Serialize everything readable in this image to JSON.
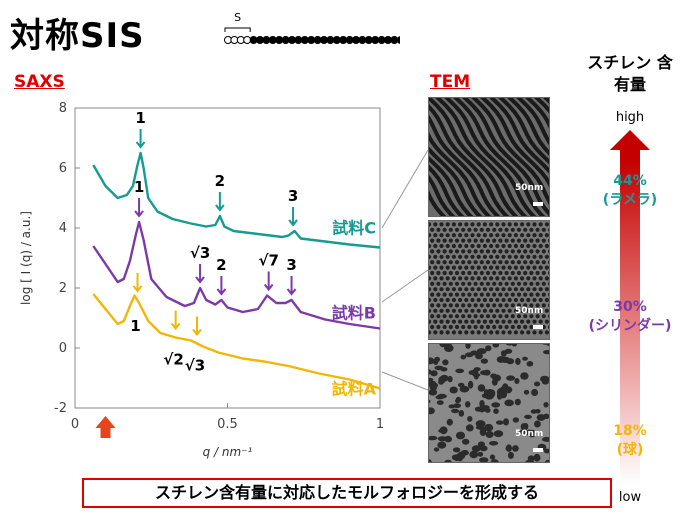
{
  "title": "対称SIS",
  "polymer_schematic": {
    "end_label_left": "S",
    "end_label_right": "S",
    "end_beads": 4,
    "mid_beads": 25
  },
  "saxs": {
    "label": "SAXS"
  },
  "tem": {
    "label": "TEM",
    "scale_bar": "50nm"
  },
  "styrene": {
    "title": "スチレン 含有量",
    "high": "high",
    "low": "low"
  },
  "footer": "スチレン含有量に対応したモルフォロジーを形成する",
  "colors": {
    "teal": "#169a94",
    "purple": "#7b3aa8",
    "gold": "#f2b705",
    "red": "#e00000"
  },
  "chart_data": {
    "type": "line",
    "xlabel": "q / nm⁻¹",
    "ylabel": "log [ I (q) / a.u.]",
    "xlim": [
      0,
      1
    ],
    "ylim": [
      -2,
      8
    ],
    "x_ticks": [
      "0",
      "0.5",
      "1"
    ],
    "y_ticks": [
      "-2",
      "0",
      "2",
      "4",
      "6",
      "8"
    ],
    "beam_marker_q": 0.1,
    "series": [
      {
        "name": "試料C",
        "color": "#169a94",
        "points": [
          [
            0.06,
            6.1
          ],
          [
            0.1,
            5.4
          ],
          [
            0.14,
            5.0
          ],
          [
            0.17,
            5.1
          ],
          [
            0.19,
            5.4
          ],
          [
            0.205,
            6.1
          ],
          [
            0.215,
            6.5
          ],
          [
            0.225,
            6.0
          ],
          [
            0.24,
            5.0
          ],
          [
            0.27,
            4.55
          ],
          [
            0.32,
            4.3
          ],
          [
            0.38,
            4.15
          ],
          [
            0.43,
            4.05
          ],
          [
            0.46,
            4.1
          ],
          [
            0.475,
            4.4
          ],
          [
            0.49,
            4.05
          ],
          [
            0.52,
            3.9
          ],
          [
            0.6,
            3.8
          ],
          [
            0.68,
            3.7
          ],
          [
            0.7,
            3.75
          ],
          [
            0.72,
            3.9
          ],
          [
            0.74,
            3.65
          ],
          [
            0.82,
            3.55
          ],
          [
            0.9,
            3.45
          ],
          [
            1.0,
            3.35
          ]
        ],
        "peaks": [
          {
            "label": "1",
            "q": 0.215,
            "y": 6.5
          },
          {
            "label": "2",
            "q": 0.475,
            "y": 4.4
          },
          {
            "label": "3",
            "q": 0.715,
            "y": 3.9
          }
        ]
      },
      {
        "name": "試料B",
        "color": "#7b3aa8",
        "points": [
          [
            0.06,
            3.4
          ],
          [
            0.1,
            2.8
          ],
          [
            0.14,
            2.2
          ],
          [
            0.16,
            2.3
          ],
          [
            0.18,
            2.9
          ],
          [
            0.2,
            3.8
          ],
          [
            0.21,
            4.2
          ],
          [
            0.225,
            3.6
          ],
          [
            0.25,
            2.3
          ],
          [
            0.3,
            1.7
          ],
          [
            0.36,
            1.4
          ],
          [
            0.39,
            1.5
          ],
          [
            0.41,
            2.0
          ],
          [
            0.43,
            1.6
          ],
          [
            0.46,
            1.45
          ],
          [
            0.48,
            1.6
          ],
          [
            0.5,
            1.35
          ],
          [
            0.55,
            1.2
          ],
          [
            0.6,
            1.3
          ],
          [
            0.63,
            1.75
          ],
          [
            0.66,
            1.5
          ],
          [
            0.69,
            1.5
          ],
          [
            0.71,
            1.6
          ],
          [
            0.74,
            1.2
          ],
          [
            0.82,
            0.95
          ],
          [
            0.9,
            0.8
          ],
          [
            1.0,
            0.65
          ]
        ],
        "peaks": [
          {
            "label": "1",
            "q": 0.21,
            "y": 4.2
          },
          {
            "label": "√3",
            "q": 0.41,
            "y": 2.0
          },
          {
            "label": "2",
            "q": 0.48,
            "y": 1.6
          },
          {
            "label": "√7",
            "q": 0.635,
            "y": 1.75
          },
          {
            "label": "3",
            "q": 0.71,
            "y": 1.6
          }
        ]
      },
      {
        "name": "試料A",
        "color": "#f2b705",
        "points": [
          [
            0.06,
            1.8
          ],
          [
            0.1,
            1.3
          ],
          [
            0.14,
            0.8
          ],
          [
            0.16,
            0.9
          ],
          [
            0.18,
            1.4
          ],
          [
            0.195,
            1.75
          ],
          [
            0.21,
            1.5
          ],
          [
            0.24,
            0.9
          ],
          [
            0.28,
            0.5
          ],
          [
            0.33,
            0.35
          ],
          [
            0.38,
            0.25
          ],
          [
            0.42,
            0.05
          ],
          [
            0.47,
            -0.15
          ],
          [
            0.55,
            -0.35
          ],
          [
            0.62,
            -0.45
          ],
          [
            0.7,
            -0.6
          ],
          [
            0.8,
            -0.85
          ],
          [
            0.9,
            -1.05
          ],
          [
            1.0,
            -1.35
          ]
        ],
        "peaks": [
          {
            "label": "1",
            "q": 0.205,
            "y": 1.7
          },
          {
            "label": "√2",
            "q": 0.33,
            "y": 0.45
          },
          {
            "label": "√3",
            "q": 0.4,
            "y": 0.25
          }
        ]
      }
    ]
  },
  "samples_scale": [
    {
      "pct": "44%",
      "morph": "(ラメラ)",
      "color": "#169a94"
    },
    {
      "pct": "30%",
      "morph": "(シリンダー)",
      "color": "#7b3aa8"
    },
    {
      "pct": "18%",
      "morph": "(球)",
      "color": "#f2b705"
    }
  ]
}
